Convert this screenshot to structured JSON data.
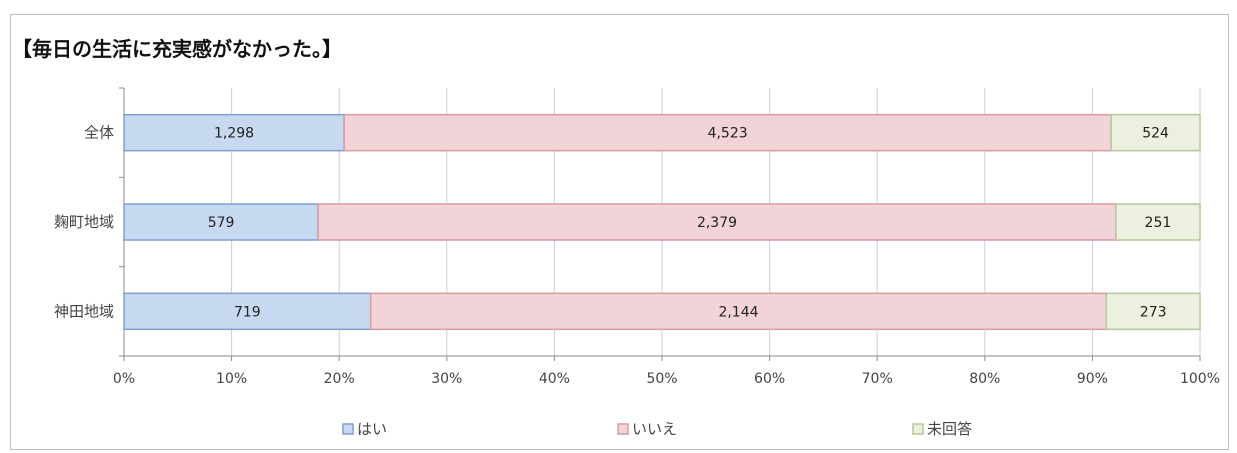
{
  "chart_data": {
    "type": "bar",
    "orientation": "horizontal",
    "stacked": "percent",
    "title": "【毎日の生活に充実感がなかった。】",
    "categories": [
      "全体",
      "麹町地域",
      "神田地域"
    ],
    "series": [
      {
        "name": "はい",
        "values": [
          1298,
          579,
          719
        ],
        "labels": [
          "1,298",
          "579",
          "719"
        ],
        "color": "#c6d9f1",
        "stroke": "#7f9fd1"
      },
      {
        "name": "いいえ",
        "values": [
          4523,
          2379,
          2144
        ],
        "labels": [
          "4,523",
          "2,379",
          "2,144"
        ],
        "color": "#f2d3d7",
        "stroke": "#d99aa2"
      },
      {
        "name": "未回答",
        "values": [
          524,
          251,
          273
        ],
        "labels": [
          "524",
          "251",
          "273"
        ],
        "color": "#ebf1de",
        "stroke": "#b4c79a"
      }
    ],
    "xlim": [
      0,
      100
    ],
    "xticks": [
      "0%",
      "10%",
      "20%",
      "30%",
      "40%",
      "50%",
      "60%",
      "70%",
      "80%",
      "90%",
      "100%"
    ],
    "grid": true,
    "legend": "bottom"
  }
}
